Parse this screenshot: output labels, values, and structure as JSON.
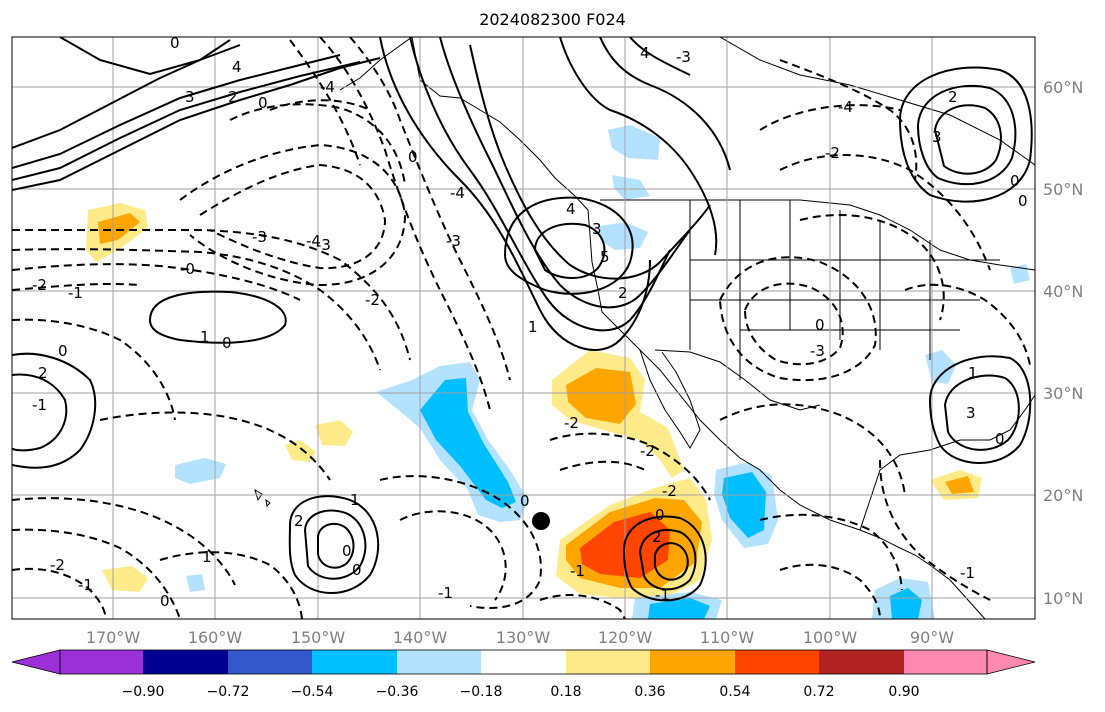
{
  "title": "2024082300 F024",
  "lon_ticks": [
    "170°W",
    "160°W",
    "150°W",
    "140°W",
    "130°W",
    "120°W",
    "110°W",
    "100°W",
    "90°W"
  ],
  "lat_ticks": [
    "60°N",
    "50°N",
    "40°N",
    "30°N",
    "20°N",
    "10°N"
  ],
  "colorbar": {
    "colors": [
      "#9b30d9",
      "#000090",
      "#3358cc",
      "#00bfff",
      "#b2e2ff",
      "#ffffff",
      "#ffea8a",
      "#ffa500",
      "#ff4500",
      "#b22222",
      "#ff88b0"
    ],
    "ticks": [
      "−0.90",
      "−0.72",
      "−0.54",
      "−0.36",
      "−0.18",
      "0.18",
      "0.36",
      "0.54",
      "0.72",
      "0.90"
    ]
  },
  "contour_labels": [
    "0",
    "4",
    "3",
    "2",
    "0",
    "-4",
    "4",
    "-3",
    "-4",
    "-2",
    "-3",
    "-2",
    "-1",
    "-0",
    "0",
    "1",
    "2",
    "-1",
    "-3",
    "-2",
    "0",
    "1",
    "2",
    "3",
    "-4",
    "-3",
    "-2",
    "0",
    "0",
    "1",
    "0",
    "-1",
    "-2",
    "0",
    "0",
    "-1",
    "2",
    "-2",
    "-1",
    "0",
    "-2",
    "-3",
    "0",
    "2",
    "3",
    "0",
    "3",
    "4",
    "5",
    "-1",
    "0",
    "1",
    "-4",
    "2",
    "0",
    "1",
    "-1"
  ],
  "marker": {
    "type": "filled-circle"
  }
}
